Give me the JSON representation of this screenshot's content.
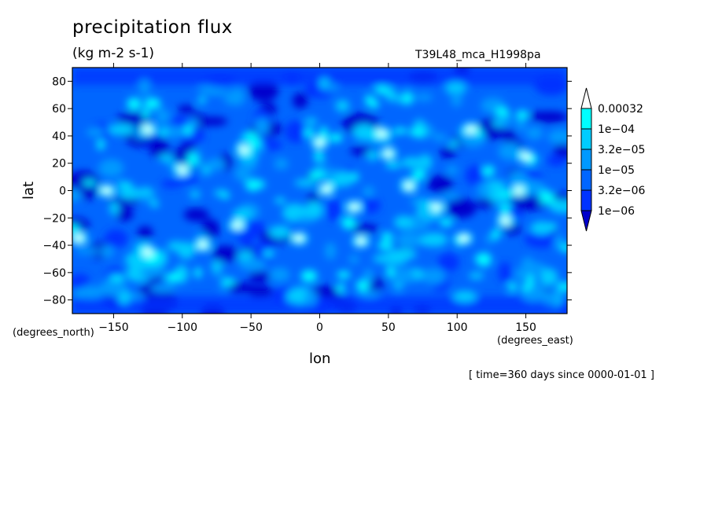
{
  "chart_data": {
    "type": "heatmap",
    "title": "precipitation flux",
    "units": "(kg m-2 s-1)",
    "run_name": "T39L48_mca_H1998pa",
    "time_note": "[ time=360 days since 0000-01-01 ]",
    "xlabel": "lon",
    "ylabel": "lat",
    "x_unit": "(degrees_east)",
    "y_unit": "(degrees_north)",
    "xlim": [
      -180,
      180
    ],
    "ylim": [
      -90,
      90
    ],
    "x_ticks": [
      -150,
      -100,
      -50,
      0,
      50,
      100,
      150
    ],
    "y_ticks": [
      80,
      60,
      40,
      20,
      0,
      -20,
      -40,
      -60,
      -80
    ],
    "colorbar": {
      "levels": [
        "0.00032",
        "1e-04",
        "3.2e-05",
        "1e-05",
        "3.2e-06",
        "1e-06"
      ],
      "colors": [
        "#ffffff",
        "#00ffff",
        "#00ccff",
        "#0099ff",
        "#0066ff",
        "#0033ff",
        "#0000cc"
      ]
    },
    "hotspots": [
      {
        "lon": 5,
        "lat": 1
      },
      {
        "lon": -125,
        "lat": 45
      },
      {
        "lon": -55,
        "lat": 30
      },
      {
        "lon": -100,
        "lat": 15
      },
      {
        "lon": -155,
        "lat": 0
      },
      {
        "lon": 50,
        "lat": 27
      },
      {
        "lon": 65,
        "lat": 3
      },
      {
        "lon": 145,
        "lat": 0
      },
      {
        "lon": 150,
        "lat": 25
      },
      {
        "lon": -175,
        "lat": -35
      },
      {
        "lon": -125,
        "lat": -45
      },
      {
        "lon": 135,
        "lat": -22
      },
      {
        "lon": 85,
        "lat": -12
      },
      {
        "lon": 25,
        "lat": -12
      },
      {
        "lon": -15,
        "lat": -35
      },
      {
        "lon": 105,
        "lat": -35
      },
      {
        "lon": 110,
        "lat": 45
      },
      {
        "lon": 0,
        "lat": 35
      },
      {
        "lon": 30,
        "lat": -37
      },
      {
        "lon": -85,
        "lat": -40
      },
      {
        "lon": -60,
        "lat": -25
      },
      {
        "lon": 45,
        "lat": 42
      }
    ]
  }
}
